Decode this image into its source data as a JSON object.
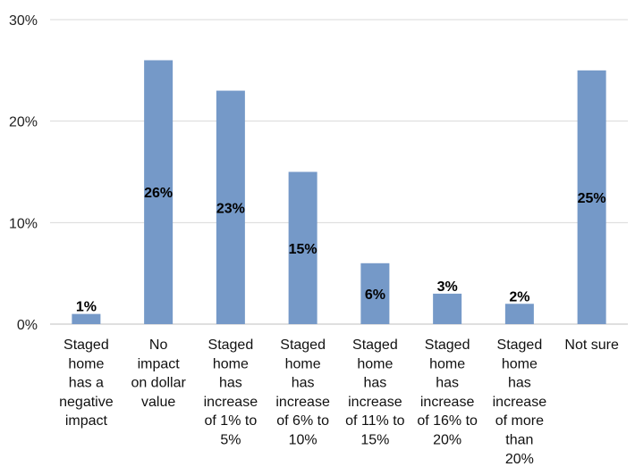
{
  "chart_data": {
    "type": "bar",
    "categories": [
      [
        "Staged",
        "home",
        "has a",
        "negative",
        "impact"
      ],
      [
        "No",
        "impact",
        "on dollar",
        "value"
      ],
      [
        "Staged",
        "home",
        "has",
        "increase",
        "of 1% to",
        "5%"
      ],
      [
        "Staged",
        "home",
        "has",
        "increase",
        "of 6% to",
        "10%"
      ],
      [
        "Staged",
        "home",
        "has",
        "increase",
        "of 11% to",
        "15%"
      ],
      [
        "Staged",
        "home",
        "has",
        "increase",
        "of 16% to",
        "20%"
      ],
      [
        "Staged",
        "home",
        "has",
        "increase",
        "of more",
        "than",
        "20%"
      ],
      [
        "Not sure"
      ]
    ],
    "values": [
      1,
      26,
      23,
      15,
      6,
      3,
      2,
      25
    ],
    "data_labels": [
      "1%",
      "26%",
      "23%",
      "15%",
      "6%",
      "3%",
      "2%",
      "25%"
    ],
    "yticks": [
      {
        "value": 0,
        "label": "0%"
      },
      {
        "value": 10,
        "label": "10%"
      },
      {
        "value": 20,
        "label": "20%"
      },
      {
        "value": 30,
        "label": "30%"
      }
    ],
    "ylim": [
      0,
      30
    ],
    "grid": true,
    "bar_color": "#7599c8",
    "grid_color": "#d9d9d9"
  }
}
